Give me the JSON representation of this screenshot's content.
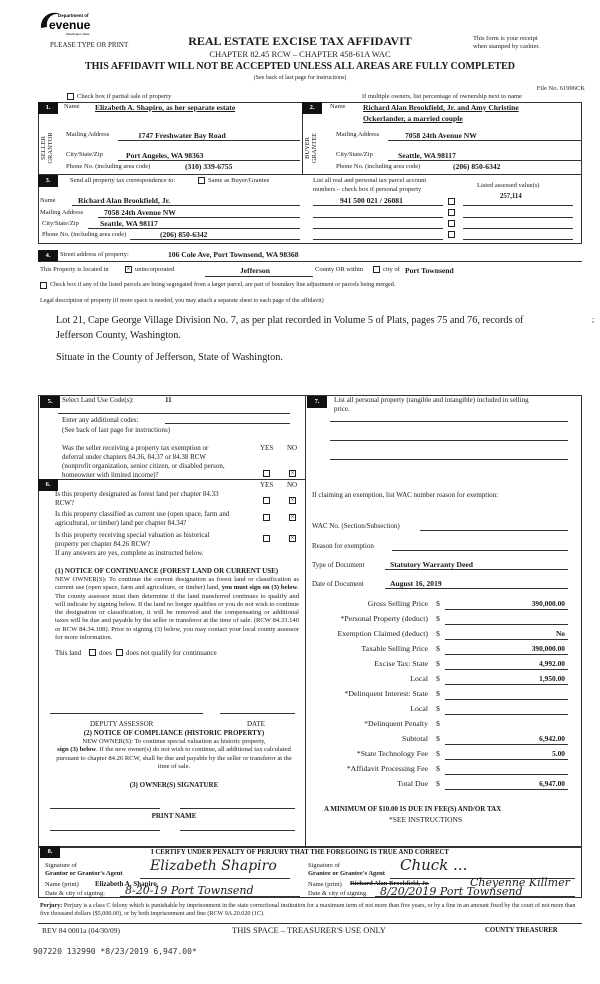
{
  "header": {
    "logo_text": "Department of Revenue Washington State",
    "please": "PLEASE TYPE OR PRINT",
    "title": "REAL ESTATE EXCISE TAX AFFIDAVIT",
    "chapter": "CHAPTER 82.45 RCW – CHAPTER 458-61A WAC",
    "warning": "THIS AFFIDAVIT WILL NOT BE ACCEPTED UNLESS ALL AREAS ARE FULLY COMPLETED",
    "see_back": "(See back of last page for instructions)",
    "receipt_1": "This form is your receipt",
    "receipt_2": "when stamped by cashier.",
    "file_no": "File No. 61996CK",
    "partial_sale": "Check box if partial sale of property",
    "multiple_owners": "If multiple owners, list percentage of ownership next to name"
  },
  "labels": {
    "name": "Name",
    "mailing": "Mailing Address",
    "city": "City/State/Zip",
    "phone": "Phone No. (including area code)",
    "seller": "SELLER GRANTOR",
    "buyer": "BUYER GRANTEE"
  },
  "seller": {
    "num": "1.",
    "name": "Elizabeth A. Shapiro, as her separate estate",
    "mailing": "1747 Freshwater Bay Road",
    "city": "Port Angeles, WA 98363",
    "phone": "(310) 339-6755"
  },
  "buyer": {
    "num": "2.",
    "name_1": "Richard Alan Brookfield, Jr. and Amy Christine",
    "name_2": "Ockerlander, a married couple",
    "mailing": "7058 24th Avenue NW",
    "city": "Seattle, WA 98117",
    "phone": "(206) 850-6342"
  },
  "sec3": {
    "num": "3.",
    "send": "Send all property tax correspondence to:",
    "same": "Same as Buyer/Grantee",
    "list_1": "List all real and personal tax parcel account",
    "list_2": "numbers – check box if personal property",
    "assessed": "Listed assessed value(s)",
    "name": "Richard Alan Brookfield, Jr.",
    "mailing": "7058 24th Avenue NW",
    "city": "Seattle, WA 98117",
    "phone": "(206) 850-6342",
    "parcel": "941 500 021 / 26081",
    "value": "257,114"
  },
  "sec4": {
    "num": "4.",
    "street_label": "Street address of property:",
    "street": "106 Cole Ave, Port Townsend, WA  98368",
    "located": "This Property is located in",
    "unincorporated": "unincorporated",
    "county": "Jefferson",
    "county_or": "County OR  within",
    "city_of": "city of",
    "city": "Port Townsend",
    "segregated": "Check box if any of the listed parcels are being segregated from a larger parcel, are part of boundary line adjustment or parcels being merged.",
    "legal_label": "Legal description of property (if more space is needed, you may attach a separate sheet to each page of the affidavit)",
    "legal_1": "Lot 21, Cape George Village Division No. 7, as per plat recorded in Volume 5 of Plats, pages 75 and 76, records of",
    "legal_2": "Jefferson County, Washington.",
    "legal_3": "Situate in the County of Jefferson, State of Washington.",
    "mark": ";"
  },
  "sec5": {
    "num": "5.",
    "land_use": "Select Land Use Code(s):",
    "code": "11",
    "additional": "Enter any additional codes:",
    "see_back": "(See back of last page for instructions)",
    "q1_1": "Was the seller receiving a property tax exemption or",
    "q1_2": "deferral under chapters 84.36, 84.37 or 84.38 RCW",
    "q1_3": "(nonprofit organization, senior citizen, or disabled person,",
    "q1_4": "homeowner with limited income)?",
    "yes": "YES",
    "no": "NO"
  },
  "sec6": {
    "num": "6.",
    "q1_1": "Is this property designated as forest land per chapter 84.33",
    "q1_2": "RCW?",
    "q2_1": "Is this property classified as current use (open space, farm and",
    "q2_2": "agricultural, or timber) land per chapter 84.34?",
    "q3_1": "Is this property receiving special valuation as historical",
    "q3_2": "property per chapter 84.26 RCW?",
    "if_yes": "If any answers are yes, complete as instructed below.",
    "notice1_title": "(1) NOTICE OF CONTINUANCE (FOREST LAND OR CURRENT USE)",
    "notice1_a": "NEW OWNER(S): To continue the current designation as forest land or classification as current use (open space, farm and agriculture, or timber) land, ",
    "notice1_b": "you must sign on (3) below",
    "notice1_c": ". The county assessor must then determine if the land transferred continues to qualify and will indicate by signing below. If the land no longer qualifies or you do not wish to continue the designation or classification, it will be removed and the compensating or additional taxes will be due and payable by the seller or transferor at the time of sale. (RCW 84.33.140 or RCW 84.34.108). Prior to signing (3) below, you may contact your local county assessor for more information.",
    "this_land": "This land",
    "does": "does",
    "does_not": "does not  qualify for continuance",
    "deputy": "DEPUTY ASSESSOR",
    "date": "DATE",
    "notice2_title": "(2) NOTICE OF COMPLIANCE (HISTORIC PROPERTY)",
    "notice2_a": "NEW OWNER(S):  To continue special valuation as historic property,",
    "notice2_b": "sign (3) below",
    "notice2_c": ". If the new owner(s) do not wish to continue, all additional tax calculated pursuant to chapter 84.26 RCW, shall be due and payable by the seller or transferor at the time of sale.",
    "owner_sig": "(3)  OWNER(S) SIGNATURE",
    "print_name": "PRINT NAME"
  },
  "sec7": {
    "num": "7.",
    "list_1": "List all personal property (tangible and intangible) included in selling",
    "list_2": "price.",
    "exemption": "If claiming an exemption, list WAC number reason for exemption:",
    "wac": "WAC No. (Section/Subsection)",
    "reason": "Reason for exemption",
    "doc_type_label": "Type of Document",
    "doc_type": "Statutory Warranty Deed",
    "doc_date_label": "Date of Document",
    "doc_date": "August 16, 2019",
    "rows": [
      {
        "label": "Gross Selling Price",
        "value": "390,000.00"
      },
      {
        "label": "*Personal Property (deduct)",
        "value": ""
      },
      {
        "label": "Exemption Claimed (deduct)",
        "value": "No"
      },
      {
        "label": "Taxable Selling Price",
        "value": "390,000.00"
      },
      {
        "label": "Excise Tax:  State",
        "value": "4,992.00"
      },
      {
        "label": "Local",
        "value": "1,950.00"
      },
      {
        "label": "*Delinquent Interest:  State",
        "value": ""
      },
      {
        "label": "Local",
        "value": ""
      },
      {
        "label": "*Delinquent Penalty",
        "value": ""
      },
      {
        "label": "Subtotal",
        "value": "6,942.00"
      },
      {
        "label": "*State Technology Fee",
        "value": "5.00"
      },
      {
        "label": "*Affidavit Processing Fee",
        "value": ""
      },
      {
        "label": "Total Due",
        "value": "6,947.00"
      }
    ],
    "dollar": "$",
    "minimum": "A MINIMUM OF $10.00 IS DUE IN FEE(S) AND/OR TAX",
    "see_inst": "*SEE INSTRUCTIONS"
  },
  "sec8": {
    "num": "8.",
    "certify": "I CERTIFY UNDER PENALTY OF PERJURY THAT THE FOREGOING IS TRUE AND CORRECT",
    "sig_of": "Signature of",
    "grantor_agent": "Grantor or Grantor's Agent",
    "grantee_agent": "Grantee or Grantee's Agent",
    "name_print": "Name (print)",
    "date_city": "Date & city of signing:",
    "date_city2": "Date & city of signing",
    "grantor_name": "Elizabeth A. Shapiro",
    "grantee_name_struck": "Richard Alan Brookfield, Jr.",
    "grantor_sig": "Elizabeth Shapiro",
    "grantee_sig": "Chuck ...",
    "grantee_name_hand": "Cheyenne Killmer",
    "grantor_date_hand": "8-20-19   Port Townsend",
    "grantee_date_hand": "8/20/2019  Port Townsend",
    "perjury_label": "Perjury:",
    "perjury": "Perjury is a class C felony which is punishable by imprisonment in the state correctional institution for a maximum term of not more than five years, or by a fine in an amount fixed by the court of not more than five thousand dollars ($5,000.00), or by both imprisonment and fine (RCW 9A.20.020 (1C)."
  },
  "footer": {
    "rev": "REV 84 0001a (04/30/09)",
    "treasurer_use": "THIS SPACE – TREASURER'S USE ONLY",
    "county_treasurer": "COUNTY TREASURER",
    "stamp": "907220 132990 *8/23/2019 6,947.00*"
  }
}
